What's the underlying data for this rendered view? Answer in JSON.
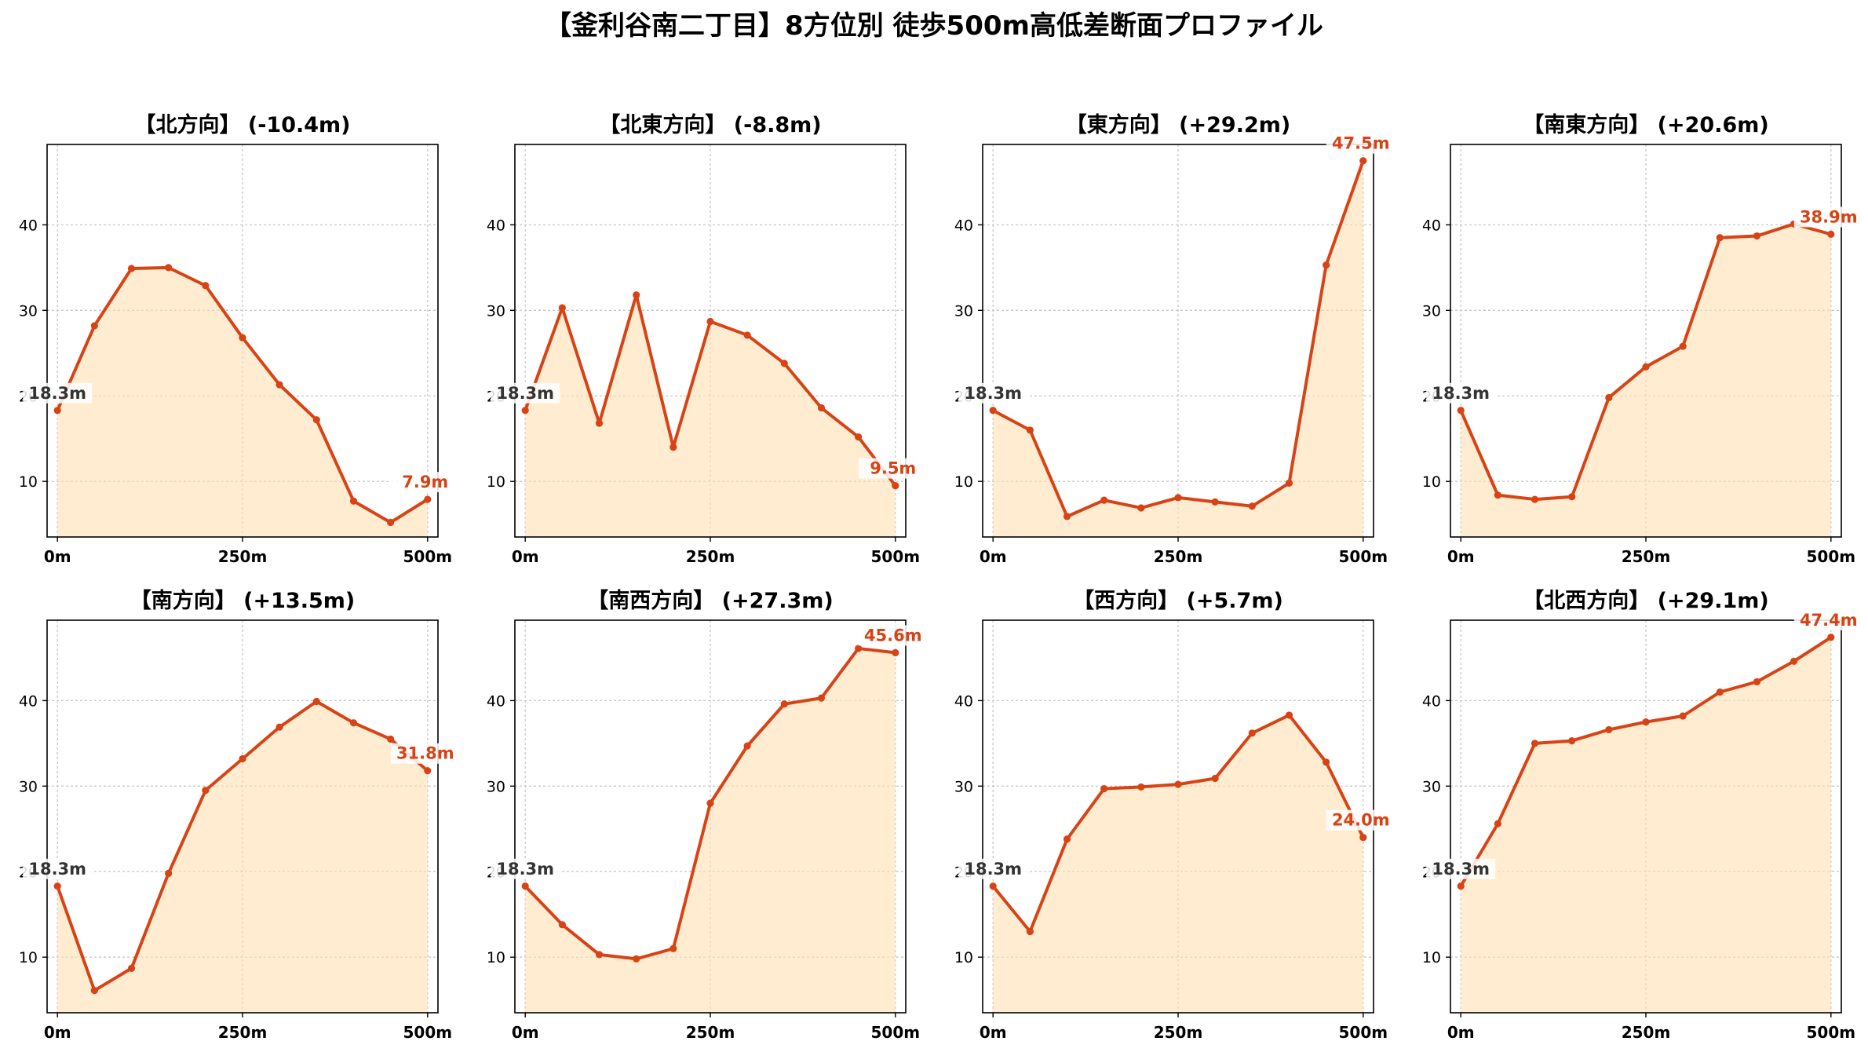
{
  "figure": {
    "suptitle": "【釜利谷南二丁目】8方位別 徒歩500m高低差断面プロファイル",
    "line_color": "#d84315",
    "fill_color": "#ffe0b2",
    "start_label_color": "#333333"
  },
  "chart_data": [
    {
      "type": "area",
      "title": "【北方向】 (-10.4m)",
      "x": [
        0,
        50,
        100,
        150,
        200,
        250,
        300,
        350,
        400,
        450,
        500
      ],
      "values": [
        18.3,
        28.2,
        34.9,
        35.0,
        32.9,
        26.8,
        21.3,
        17.2,
        7.7,
        5.2,
        7.9
      ],
      "xticks": [
        "0m",
        "250m",
        "500m"
      ],
      "yticks": [
        10,
        20,
        30,
        40
      ],
      "ylim": [
        3.5,
        49.4
      ],
      "start_label": "18.3m",
      "end_label": "7.9m",
      "grid": true
    },
    {
      "type": "area",
      "title": "【北東方向】 (-8.8m)",
      "x": [
        0,
        50,
        100,
        150,
        200,
        250,
        300,
        350,
        400,
        450,
        500
      ],
      "values": [
        18.3,
        30.3,
        16.8,
        31.8,
        14.0,
        28.7,
        27.1,
        23.8,
        18.6,
        15.2,
        9.5
      ],
      "xticks": [
        "0m",
        "250m",
        "500m"
      ],
      "yticks": [
        10,
        20,
        30,
        40
      ],
      "ylim": [
        3.5,
        49.4
      ],
      "start_label": "18.3m",
      "end_label": "9.5m",
      "grid": true
    },
    {
      "type": "area",
      "title": "【東方向】 (+29.2m)",
      "x": [
        0,
        50,
        100,
        150,
        200,
        250,
        300,
        350,
        400,
        450,
        500
      ],
      "values": [
        18.3,
        16.0,
        5.9,
        7.8,
        6.9,
        8.1,
        7.6,
        7.1,
        9.8,
        35.3,
        47.5
      ],
      "xticks": [
        "0m",
        "250m",
        "500m"
      ],
      "yticks": [
        10,
        20,
        30,
        40
      ],
      "ylim": [
        3.5,
        49.4
      ],
      "start_label": "18.3m",
      "end_label": "47.5m",
      "grid": true
    },
    {
      "type": "area",
      "title": "【南東方向】 (+20.6m)",
      "x": [
        0,
        50,
        100,
        150,
        200,
        250,
        300,
        350,
        400,
        450,
        500
      ],
      "values": [
        18.3,
        8.4,
        7.9,
        8.2,
        19.8,
        23.4,
        25.8,
        38.5,
        38.7,
        40.1,
        38.9
      ],
      "xticks": [
        "0m",
        "250m",
        "500m"
      ],
      "yticks": [
        10,
        20,
        30,
        40
      ],
      "ylim": [
        3.5,
        49.4
      ],
      "start_label": "18.3m",
      "end_label": "38.9m",
      "grid": true
    },
    {
      "type": "area",
      "title": "【南方向】 (+13.5m)",
      "x": [
        0,
        50,
        100,
        150,
        200,
        250,
        300,
        350,
        400,
        450,
        500
      ],
      "values": [
        18.3,
        6.1,
        8.7,
        19.8,
        29.5,
        33.2,
        36.9,
        39.9,
        37.4,
        35.5,
        31.8
      ],
      "xticks": [
        "0m",
        "250m",
        "500m"
      ],
      "yticks": [
        10,
        20,
        30,
        40
      ],
      "ylim": [
        3.5,
        49.4
      ],
      "start_label": "18.3m",
      "end_label": "31.8m",
      "grid": true
    },
    {
      "type": "area",
      "title": "【南西方向】 (+27.3m)",
      "x": [
        0,
        50,
        100,
        150,
        200,
        250,
        300,
        350,
        400,
        450,
        500
      ],
      "values": [
        18.3,
        13.8,
        10.3,
        9.8,
        11.0,
        28.0,
        34.7,
        39.6,
        40.3,
        46.1,
        45.6
      ],
      "xticks": [
        "0m",
        "250m",
        "500m"
      ],
      "yticks": [
        10,
        20,
        30,
        40
      ],
      "ylim": [
        3.5,
        49.4
      ],
      "start_label": "18.3m",
      "end_label": "45.6m",
      "grid": true
    },
    {
      "type": "area",
      "title": "【西方向】 (+5.7m)",
      "x": [
        0,
        50,
        100,
        150,
        200,
        250,
        300,
        350,
        400,
        450,
        500
      ],
      "values": [
        18.3,
        13.0,
        23.8,
        29.7,
        29.9,
        30.2,
        30.9,
        36.2,
        38.3,
        32.8,
        24.0
      ],
      "xticks": [
        "0m",
        "250m",
        "500m"
      ],
      "yticks": [
        10,
        20,
        30,
        40
      ],
      "ylim": [
        3.5,
        49.4
      ],
      "start_label": "18.3m",
      "end_label": "24.0m",
      "grid": true
    },
    {
      "type": "area",
      "title": "【北西方向】 (+29.1m)",
      "x": [
        0,
        50,
        100,
        150,
        200,
        250,
        300,
        350,
        400,
        450,
        500
      ],
      "values": [
        18.3,
        25.6,
        35.0,
        35.3,
        36.6,
        37.5,
        38.2,
        41.0,
        42.2,
        44.6,
        47.4
      ],
      "xticks": [
        "0m",
        "250m",
        "500m"
      ],
      "yticks": [
        10,
        20,
        30,
        40
      ],
      "ylim": [
        3.5,
        49.4
      ],
      "start_label": "18.3m",
      "end_label": "47.4m",
      "grid": true
    }
  ]
}
